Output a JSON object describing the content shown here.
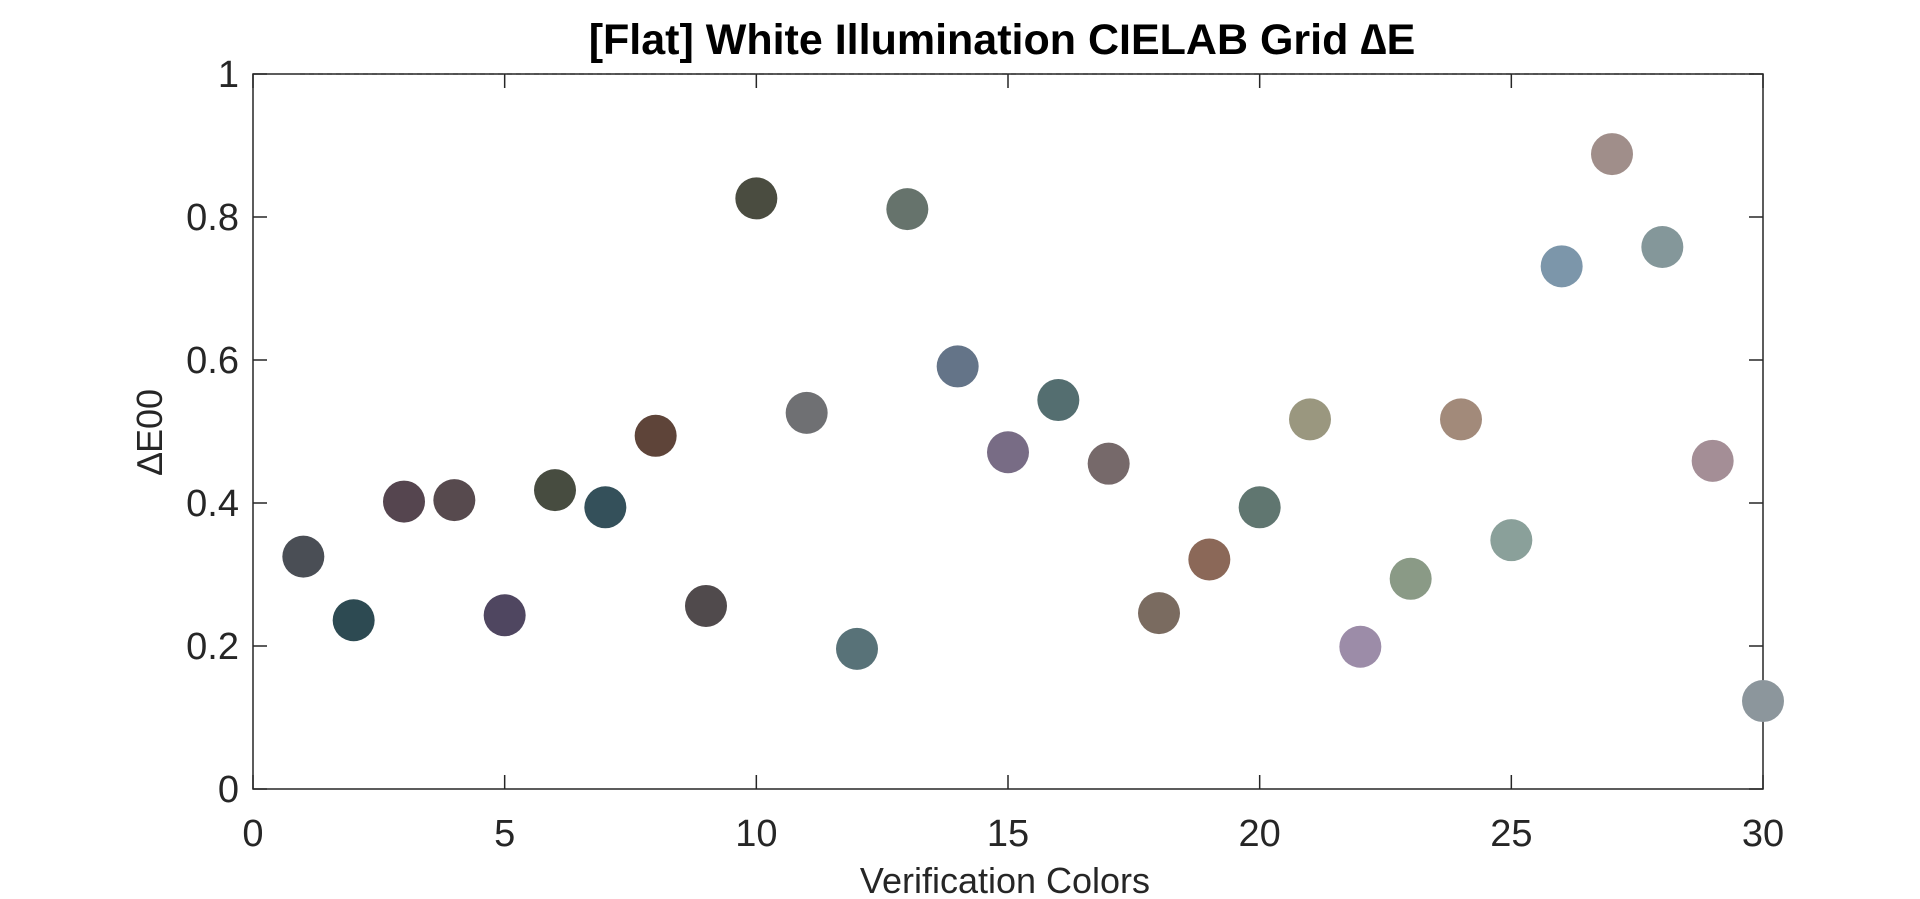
{
  "chart_data": {
    "type": "scatter",
    "title": "[Flat] White Illumination CIELAB Grid ∆E",
    "xlabel": "Verification Colors",
    "ylabel": "∆E00",
    "xlim": [
      0,
      30
    ],
    "ylim": [
      0,
      1
    ],
    "xticks": [
      "0",
      "5",
      "10",
      "15",
      "20",
      "25",
      "30"
    ],
    "yticks": [
      "0",
      "0.2",
      "0.4",
      "0.6",
      "0.8",
      "1"
    ],
    "grid": false,
    "points": [
      {
        "x": 1,
        "y": 0.325,
        "color": "#4a4e55"
      },
      {
        "x": 2,
        "y": 0.236,
        "color": "#2d4a52"
      },
      {
        "x": 3,
        "y": 0.402,
        "color": "#55454f"
      },
      {
        "x": 4,
        "y": 0.404,
        "color": "#574a4e"
      },
      {
        "x": 5,
        "y": 0.243,
        "color": "#4f4660"
      },
      {
        "x": 6,
        "y": 0.418,
        "color": "#474c40"
      },
      {
        "x": 7,
        "y": 0.394,
        "color": "#34505a"
      },
      {
        "x": 8,
        "y": 0.494,
        "color": "#5e4439"
      },
      {
        "x": 9,
        "y": 0.256,
        "color": "#504a4c"
      },
      {
        "x": 10,
        "y": 0.826,
        "color": "#4a4c40"
      },
      {
        "x": 11,
        "y": 0.526,
        "color": "#6f7073"
      },
      {
        "x": 12,
        "y": 0.196,
        "color": "#587278"
      },
      {
        "x": 13,
        "y": 0.811,
        "color": "#66736c"
      },
      {
        "x": 14,
        "y": 0.591,
        "color": "#647488"
      },
      {
        "x": 15,
        "y": 0.471,
        "color": "#786c85"
      },
      {
        "x": 16,
        "y": 0.544,
        "color": "#546e70"
      },
      {
        "x": 17,
        "y": 0.455,
        "color": "#76696a"
      },
      {
        "x": 18,
        "y": 0.246,
        "color": "#7a6b60"
      },
      {
        "x": 19,
        "y": 0.321,
        "color": "#8b6858"
      },
      {
        "x": 20,
        "y": 0.394,
        "color": "#607670"
      },
      {
        "x": 21,
        "y": 0.517,
        "color": "#9a977f"
      },
      {
        "x": 22,
        "y": 0.199,
        "color": "#9c8ca8"
      },
      {
        "x": 23,
        "y": 0.294,
        "color": "#8a9a86"
      },
      {
        "x": 24,
        "y": 0.517,
        "color": "#a28a7a"
      },
      {
        "x": 25,
        "y": 0.348,
        "color": "#8aa09a"
      },
      {
        "x": 26,
        "y": 0.731,
        "color": "#7c96aa"
      },
      {
        "x": 27,
        "y": 0.888,
        "color": "#a08e8a"
      },
      {
        "x": 28,
        "y": 0.758,
        "color": "#84979a"
      },
      {
        "x": 29,
        "y": 0.459,
        "color": "#a48e96"
      },
      {
        "x": 30,
        "y": 0.123,
        "color": "#8c969c"
      }
    ]
  }
}
